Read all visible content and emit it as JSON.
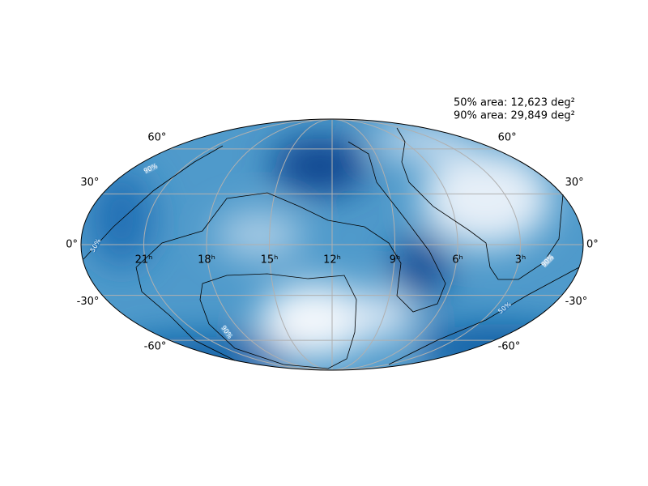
{
  "annotations": [
    "50% area: 12,623 deg²",
    "90% area: 29,849 deg²"
  ],
  "ra_ticks": [
    {
      "value": 21,
      "label": "21ʰ"
    },
    {
      "value": 18,
      "label": "18ʰ"
    },
    {
      "value": 15,
      "label": "15ʰ"
    },
    {
      "value": 12,
      "label": "12ʰ"
    },
    {
      "value": 9,
      "label": "9ʰ"
    },
    {
      "value": 6,
      "label": "6ʰ"
    },
    {
      "value": 3,
      "label": "3ʰ"
    }
  ],
  "dec_ticks": [
    {
      "value": 60,
      "label": "60°"
    },
    {
      "value": 30,
      "label": "30°"
    },
    {
      "value": 0,
      "label": "0°"
    },
    {
      "value": -30,
      "label": "-30°"
    },
    {
      "value": -60,
      "label": "-60°"
    }
  ],
  "contour_labels": [
    "50%",
    "90%",
    "90%",
    "90%",
    "50%"
  ]
}
